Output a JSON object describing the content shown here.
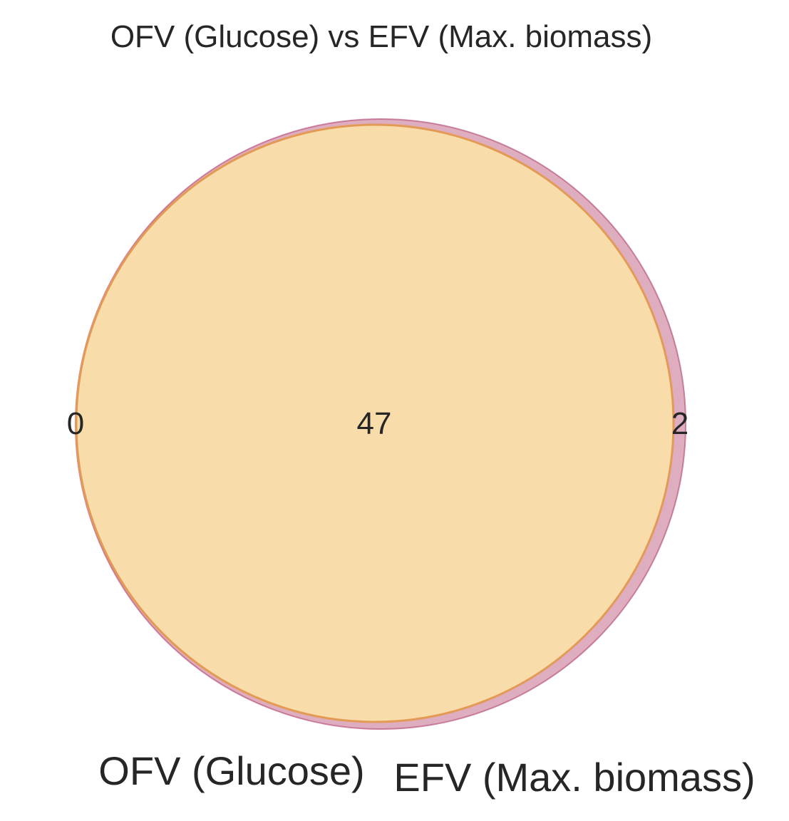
{
  "title": "OFV (Glucose) vs EFV (Max. biomass)",
  "sets": [
    {
      "name": "OFV (Glucose)",
      "color": "#f5c36a"
    },
    {
      "name": "EFV (Max. biomass)",
      "color": "#c46a8c"
    }
  ],
  "counts": {
    "only_a": "0",
    "both": "47",
    "only_b": "2"
  },
  "chart_data": {
    "type": "venn",
    "title": "OFV (Glucose) vs EFV (Max. biomass)",
    "sets": [
      "OFV (Glucose)",
      "EFV (Max. biomass)"
    ],
    "regions": [
      {
        "sets": [
          "OFV (Glucose)"
        ],
        "value": 0
      },
      {
        "sets": [
          "OFV (Glucose)",
          "EFV (Max. biomass)"
        ],
        "value": 47
      },
      {
        "sets": [
          "EFV (Max. biomass)"
        ],
        "value": 2
      }
    ]
  }
}
